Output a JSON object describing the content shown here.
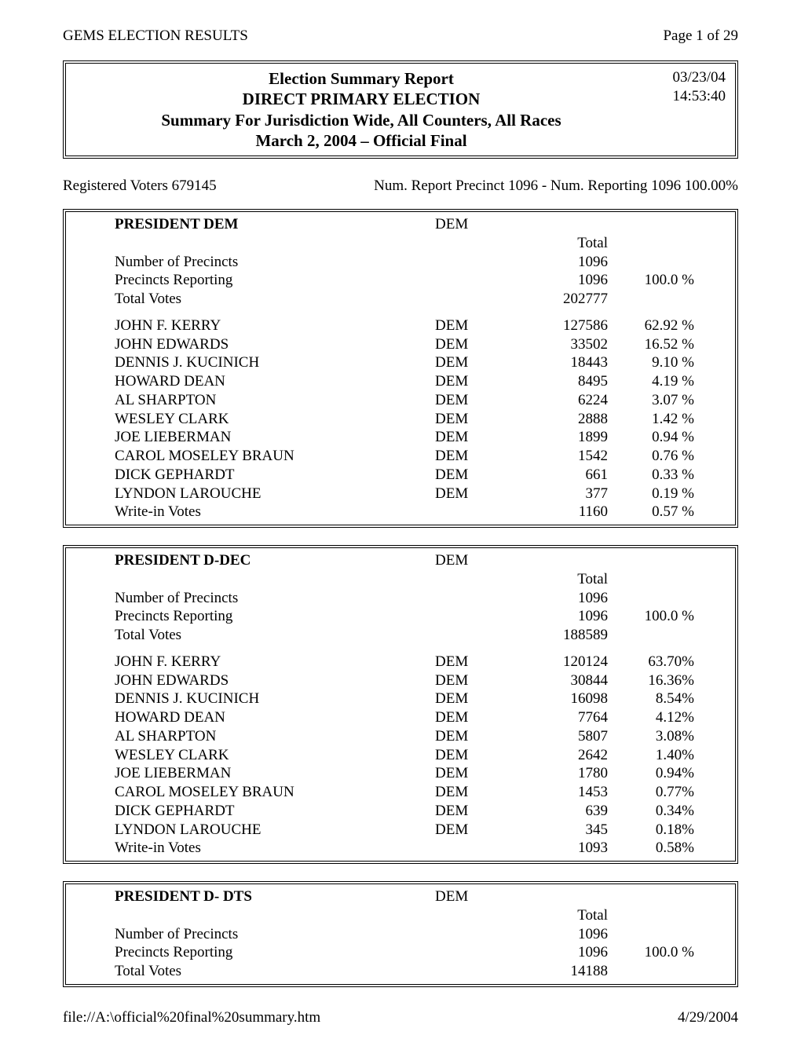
{
  "header": {
    "left": "GEMS ELECTION RESULTS",
    "right": "Page 1 of 29"
  },
  "title": {
    "line1": "Election Summary Report",
    "line2": "DIRECT PRIMARY ELECTION",
    "line3": "Summary For Jurisdiction Wide, All Counters, All Races",
    "line4": "March 2, 2004 – Official Final",
    "date": "03/23/04",
    "time": "14:53:40"
  },
  "status": {
    "left": "Registered Voters 679145",
    "right": "Num. Report Precinct 1096 - Num. Reporting 1096 100.00%"
  },
  "races": [
    {
      "title": "PRESIDENT DEM",
      "party_header": "DEM",
      "total_header": "Total",
      "summary": [
        {
          "label": "Number of Precincts",
          "total": "1096",
          "pct": ""
        },
        {
          "label": "Precincts Reporting",
          "total": "1096",
          "pct": "100.0 %"
        },
        {
          "label": "Total Votes",
          "total": "202777",
          "pct": ""
        }
      ],
      "candidates": [
        {
          "name": "JOHN F. KERRY",
          "party": "DEM",
          "votes": "127586",
          "pct": "62.92 %"
        },
        {
          "name": "JOHN EDWARDS",
          "party": "DEM",
          "votes": "33502",
          "pct": "16.52 %"
        },
        {
          "name": "DENNIS J. KUCINICH",
          "party": "DEM",
          "votes": "18443",
          "pct": "9.10 %"
        },
        {
          "name": "HOWARD DEAN",
          "party": "DEM",
          "votes": "8495",
          "pct": "4.19 %"
        },
        {
          "name": "AL SHARPTON",
          "party": "DEM",
          "votes": "6224",
          "pct": "3.07 %"
        },
        {
          "name": "WESLEY CLARK",
          "party": "DEM",
          "votes": "2888",
          "pct": "1.42 %"
        },
        {
          "name": "JOE LIEBERMAN",
          "party": "DEM",
          "votes": "1899",
          "pct": "0.94 %"
        },
        {
          "name": "CAROL MOSELEY BRAUN",
          "party": "DEM",
          "votes": "1542",
          "pct": "0.76 %"
        },
        {
          "name": "DICK GEPHARDT",
          "party": "DEM",
          "votes": "661",
          "pct": "0.33 %"
        },
        {
          "name": "LYNDON LAROUCHE",
          "party": "DEM",
          "votes": "377",
          "pct": "0.19 %"
        },
        {
          "name": "Write-in Votes",
          "party": "",
          "votes": "1160",
          "pct": "0.57 %"
        }
      ]
    },
    {
      "title": "PRESIDENT D-DEC",
      "party_header": "DEM",
      "total_header": "Total",
      "summary": [
        {
          "label": "Number of Precincts",
          "total": "1096",
          "pct": ""
        },
        {
          "label": "Precincts Reporting",
          "total": "1096",
          "pct": "100.0 %"
        },
        {
          "label": "Total Votes",
          "total": "188589",
          "pct": ""
        }
      ],
      "candidates": [
        {
          "name": "JOHN F. KERRY",
          "party": "DEM",
          "votes": "120124",
          "pct": "63.70%"
        },
        {
          "name": "JOHN EDWARDS",
          "party": "DEM",
          "votes": "30844",
          "pct": "16.36%"
        },
        {
          "name": "DENNIS J. KUCINICH",
          "party": "DEM",
          "votes": "16098",
          "pct": "8.54%"
        },
        {
          "name": "HOWARD DEAN",
          "party": "DEM",
          "votes": "7764",
          "pct": "4.12%"
        },
        {
          "name": "AL SHARPTON",
          "party": "DEM",
          "votes": "5807",
          "pct": "3.08%"
        },
        {
          "name": "WESLEY CLARK",
          "party": "DEM",
          "votes": "2642",
          "pct": "1.40%"
        },
        {
          "name": "JOE LIEBERMAN",
          "party": "DEM",
          "votes": "1780",
          "pct": "0.94%"
        },
        {
          "name": "CAROL MOSELEY BRAUN",
          "party": "DEM",
          "votes": "1453",
          "pct": "0.77%"
        },
        {
          "name": "DICK GEPHARDT",
          "party": "DEM",
          "votes": "639",
          "pct": "0.34%"
        },
        {
          "name": "LYNDON LAROUCHE",
          "party": "DEM",
          "votes": "345",
          "pct": "0.18%"
        },
        {
          "name": "Write-in Votes",
          "party": "",
          "votes": "1093",
          "pct": "0.58%"
        }
      ]
    },
    {
      "title": "PRESIDENT D- DTS",
      "party_header": "DEM",
      "total_header": "Total",
      "summary": [
        {
          "label": "Number of Precincts",
          "total": "1096",
          "pct": ""
        },
        {
          "label": "Precincts Reporting",
          "total": "1096",
          "pct": "100.0 %"
        },
        {
          "label": "Total Votes",
          "total": "14188",
          "pct": ""
        }
      ],
      "candidates": []
    }
  ],
  "footer": {
    "left": "file://A:\\official%20final%20summary.htm",
    "right": "4/29/2004"
  }
}
